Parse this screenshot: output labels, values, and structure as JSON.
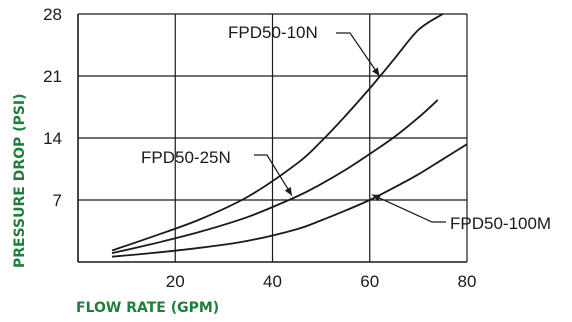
{
  "chart_data": {
    "type": "line",
    "title": "",
    "xlabel": "FLOW RATE (GPM)",
    "ylabel": "PRESSURE DROP (PSI)",
    "xlim": [
      0,
      80
    ],
    "ylim": [
      0,
      28
    ],
    "x_ticks": [
      "20",
      "40",
      "60",
      "80"
    ],
    "y_ticks": [
      "7",
      "14",
      "21",
      "28"
    ],
    "grid": true,
    "series": [
      {
        "name": "FPD50-10N",
        "x": [
          7,
          15,
          25,
          35,
          45,
          50,
          55,
          60,
          65,
          70,
          75
        ],
        "y": [
          1.3,
          2.8,
          4.8,
          7.4,
          11.1,
          13.6,
          16.5,
          19.6,
          22.9,
          26.2,
          28
        ]
      },
      {
        "name": "FPD50-25N",
        "x": [
          7,
          15,
          25,
          35,
          45,
          50,
          55,
          60,
          65,
          70,
          74
        ],
        "y": [
          1.0,
          2.0,
          3.4,
          5.1,
          7.4,
          8.8,
          10.4,
          12.2,
          14.1,
          16.3,
          18.3
        ]
      },
      {
        "name": "FPD50-100M",
        "x": [
          7,
          15,
          25,
          35,
          45,
          50,
          55,
          60,
          65,
          70,
          75,
          80
        ],
        "y": [
          0.6,
          1.0,
          1.6,
          2.4,
          3.7,
          4.7,
          5.8,
          7.0,
          8.4,
          9.9,
          11.6,
          13.3
        ]
      }
    ],
    "annotations": [
      {
        "series": "FPD50-10N",
        "text": "FPD50-10N",
        "at": [
          62,
          21
        ]
      },
      {
        "series": "FPD50-25N",
        "text": "FPD50-25N",
        "at": [
          44,
          7.5
        ]
      },
      {
        "series": "FPD50-100M",
        "text": "FPD50-100M",
        "at": [
          60.5,
          7.6
        ]
      }
    ],
    "colors": {
      "axis_title": "#1d7f3a",
      "line": "#1a1a1a",
      "grid": "#1a1a1a"
    }
  }
}
